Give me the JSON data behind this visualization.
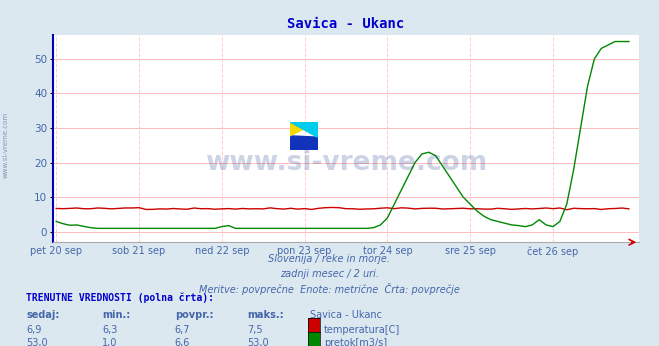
{
  "title": "Savica - Ukanc",
  "bg_color": "#dce8f0",
  "plot_bg_color": "#ffffff",
  "grid_color_h": "#ffbbbb",
  "grid_color_v": "#ffcccc",
  "xlabel_color": "#4466aa",
  "ylabel_color": "#4466aa",
  "title_color": "#0000cc",
  "subtitle_lines": [
    "Slovenija / reke in morje.",
    "zadnji mesec / 2 uri.",
    "Meritve: povprečne  Enote: metrične  Črta: povprečje"
  ],
  "watermark": "www.si-vreme.com",
  "watermark_color": "#1a3a8a",
  "left_label": "www.si-vreme.com",
  "yticks": [
    0,
    10,
    20,
    30,
    40,
    50
  ],
  "ylim": [
    -3,
    57
  ],
  "x_labels": [
    "pet 20 sep",
    "sob 21 sep",
    "ned 22 sep",
    "pon 23 sep",
    "tor 24 sep",
    "sre 25 sep",
    "čet 26 sep"
  ],
  "x_positions": [
    0,
    12,
    24,
    36,
    48,
    60,
    72
  ],
  "total_points": 84,
  "temperature_color": "#cc0000",
  "flow_color": "#008800",
  "table_header": "TRENUTNE VREDNOSTI (polna črta):",
  "table_cols": [
    "sedaj:",
    "min.:",
    "povpr.:",
    "maks.:",
    "Savica - Ukanc"
  ],
  "temp_row": [
    "6,9",
    "6,3",
    "6,7",
    "7,5",
    "temperatura[C]"
  ],
  "flow_row": [
    "53,0",
    "1,0",
    "6,6",
    "53,0",
    "pretok[m3/s]"
  ]
}
